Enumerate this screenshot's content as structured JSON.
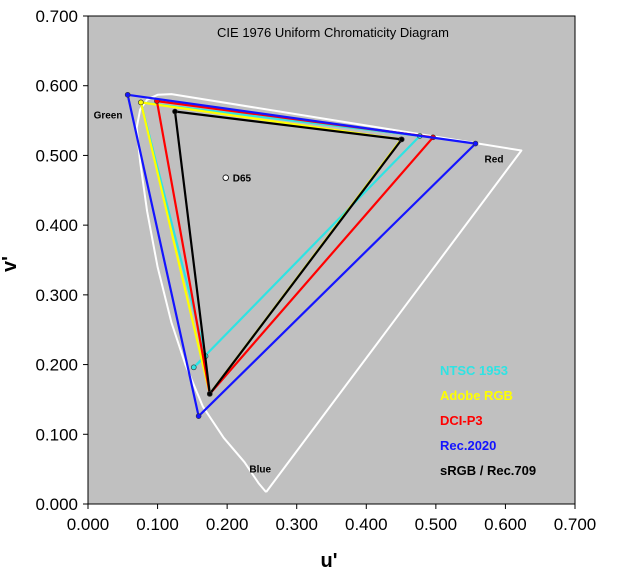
{
  "chart_data": {
    "type": "scatter",
    "title": "CIE 1976 Uniform Chromaticity Diagram",
    "xlabel": "u'",
    "ylabel": "v'",
    "xlim": [
      0.0,
      0.7
    ],
    "ylim": [
      0.0,
      0.7
    ],
    "x_ticks": [
      "0.000",
      "0.100",
      "0.200",
      "0.300",
      "0.400",
      "0.500",
      "0.600",
      "0.700"
    ],
    "y_ticks": [
      "0.000",
      "0.100",
      "0.200",
      "0.300",
      "0.400",
      "0.500",
      "0.600",
      "0.700"
    ],
    "background_color": "#c0c0c0",
    "grid": false,
    "spectral_locus": {
      "color": "#ffffff",
      "points": [
        [
          0.256,
          0.017
        ],
        [
          0.245,
          0.03
        ],
        [
          0.225,
          0.06
        ],
        [
          0.195,
          0.095
        ],
        [
          0.165,
          0.14
        ],
        [
          0.14,
          0.2
        ],
        [
          0.12,
          0.26
        ],
        [
          0.1,
          0.34
        ],
        [
          0.085,
          0.42
        ],
        [
          0.075,
          0.49
        ],
        [
          0.07,
          0.54
        ],
        [
          0.075,
          0.566
        ],
        [
          0.085,
          0.58
        ],
        [
          0.1,
          0.587
        ],
        [
          0.12,
          0.588
        ],
        [
          0.623,
          0.507
        ],
        [
          0.256,
          0.017
        ]
      ]
    },
    "point_labels": [
      {
        "text": "Green",
        "x": 0.008,
        "y": 0.553
      },
      {
        "text": "Red",
        "x": 0.57,
        "y": 0.49
      },
      {
        "text": "Blue",
        "x": 0.232,
        "y": 0.045
      }
    ],
    "white_point": {
      "name": "D65",
      "x": 0.198,
      "y": 0.468
    },
    "series": [
      {
        "name": "NTSC 1953",
        "color": "#2fe3e3",
        "points": [
          [
            0.152,
            0.196
          ],
          [
            0.477,
            0.528
          ],
          [
            0.076,
            0.576
          ],
          [
            0.169,
            0.212
          ]
        ]
      },
      {
        "name": "Adobe RGB",
        "color": "#ffff00",
        "points": [
          [
            0.45,
            0.523
          ],
          [
            0.076,
            0.576
          ],
          [
            0.175,
            0.158
          ]
        ]
      },
      {
        "name": "DCI-P3",
        "color": "#ff0000",
        "points": [
          [
            0.496,
            0.526
          ],
          [
            0.099,
            0.578
          ],
          [
            0.175,
            0.158
          ]
        ]
      },
      {
        "name": "Rec.2020",
        "color": "#1414ff",
        "points": [
          [
            0.557,
            0.517
          ],
          [
            0.057,
            0.587
          ],
          [
            0.159,
            0.126
          ]
        ]
      },
      {
        "name": "sRGB / Rec.709",
        "color": "#000000",
        "points": [
          [
            0.451,
            0.523
          ],
          [
            0.125,
            0.563
          ],
          [
            0.175,
            0.158
          ]
        ]
      }
    ],
    "legend_position": "bottom-right"
  }
}
